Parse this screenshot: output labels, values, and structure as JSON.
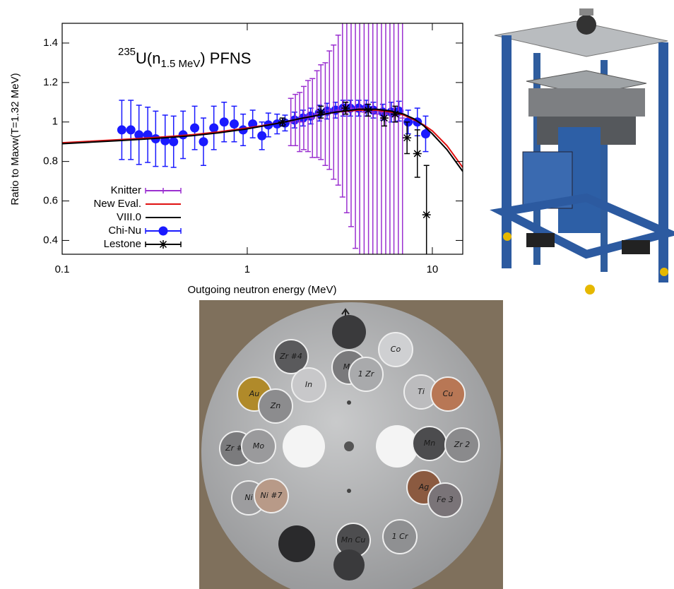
{
  "chart_data": {
    "type": "errorbar",
    "title_superscript": "235",
    "title_main": "U(n",
    "title_subscript": "1.5 MeV",
    "title_end": ") PFNS",
    "xlabel": "Outgoing neutron energy (MeV)",
    "ylabel": "Ratio to Maxw(T=1.32 MeV)",
    "xscale": "log",
    "xlim": [
      0.1,
      14.6
    ],
    "ylim": [
      0.33,
      1.5
    ],
    "xticks": [
      0.1,
      1,
      10
    ],
    "yticks": [
      0.4,
      0.6,
      0.8,
      1,
      1.2,
      1.4
    ],
    "legend": "lower left",
    "series": [
      {
        "name": "Knitter",
        "color": "#9b30d0",
        "style": "errorbar",
        "x": [
          1.72,
          1.82,
          1.92,
          2.02,
          2.13,
          2.25,
          2.38,
          2.5,
          2.64,
          2.78,
          2.93,
          3.1,
          3.27,
          3.45,
          3.64,
          3.84,
          4.05,
          4.28,
          4.52,
          4.77,
          5.03,
          5.31,
          5.6,
          5.9,
          6.2,
          6.55,
          6.9
        ],
        "values": [
          1.0,
          1.01,
          1.0,
          1.02,
          1.03,
          1.02,
          1.04,
          1.05,
          1.04,
          1.06,
          1.05,
          1.06,
          1.07,
          1.06,
          1.07,
          1.06,
          1.07,
          1.05,
          1.06,
          1.05,
          1.04,
          1.05,
          1.04,
          1.05,
          1.03,
          1.04,
          1.02
        ],
        "errors": [
          0.12,
          0.13,
          0.15,
          0.16,
          0.18,
          0.2,
          0.22,
          0.24,
          0.26,
          0.3,
          0.34,
          0.38,
          0.45,
          0.52,
          0.6,
          0.7,
          0.8,
          0.9,
          1.0,
          1.05,
          1.1,
          1.15,
          1.2,
          1.25,
          1.3,
          1.3,
          1.3
        ]
      },
      {
        "name": "New Eval.",
        "color": "#e01010",
        "style": "line",
        "x": [
          0.1,
          0.2,
          0.3,
          0.5,
          0.7,
          1,
          1.5,
          2,
          3,
          4,
          5,
          6,
          7,
          8,
          9,
          10,
          12,
          14.6
        ],
        "values": [
          0.895,
          0.91,
          0.92,
          0.935,
          0.95,
          0.97,
          0.995,
          1.02,
          1.05,
          1.06,
          1.06,
          1.05,
          1.035,
          1.01,
          0.985,
          0.955,
          0.88,
          0.77
        ]
      },
      {
        "name": "VIII.0",
        "color": "#000000",
        "style": "line",
        "x": [
          0.1,
          0.2,
          0.3,
          0.5,
          0.7,
          1,
          1.5,
          2,
          3,
          4,
          5,
          6,
          7,
          8,
          9,
          10,
          12,
          14.6
        ],
        "values": [
          0.89,
          0.905,
          0.915,
          0.93,
          0.945,
          0.965,
          0.995,
          1.02,
          1.05,
          1.065,
          1.065,
          1.055,
          1.04,
          1.015,
          0.98,
          0.94,
          0.86,
          0.75
        ]
      },
      {
        "name": "Chi-Nu",
        "color": "#1a1aff",
        "style": "errorbar-circle",
        "x": [
          0.21,
          0.235,
          0.26,
          0.29,
          0.32,
          0.36,
          0.4,
          0.45,
          0.52,
          0.58,
          0.66,
          0.75,
          0.85,
          0.95,
          1.07,
          1.2,
          1.3,
          1.45,
          1.6,
          1.8,
          2.0,
          2.2,
          2.45,
          2.7,
          3.0,
          3.3,
          3.6,
          4.0,
          4.4,
          4.8,
          5.4,
          6.0,
          6.6,
          7.4,
          8.3,
          9.2
        ],
        "values": [
          0.96,
          0.96,
          0.935,
          0.935,
          0.915,
          0.905,
          0.9,
          0.935,
          0.97,
          0.9,
          0.97,
          1.0,
          0.99,
          0.96,
          0.99,
          0.93,
          0.985,
          0.99,
          0.995,
          1.01,
          1.02,
          1.03,
          1.045,
          1.055,
          1.06,
          1.07,
          1.07,
          1.07,
          1.07,
          1.06,
          1.05,
          1.05,
          1.055,
          1.0,
          1.0,
          0.94
        ],
        "errors": [
          0.15,
          0.15,
          0.15,
          0.14,
          0.14,
          0.13,
          0.13,
          0.12,
          0.11,
          0.12,
          0.11,
          0.1,
          0.09,
          0.08,
          0.07,
          0.07,
          0.06,
          0.05,
          0.04,
          0.04,
          0.04,
          0.04,
          0.04,
          0.04,
          0.04,
          0.04,
          0.04,
          0.04,
          0.04,
          0.04,
          0.04,
          0.05,
          0.05,
          0.06,
          0.07,
          0.09
        ]
      },
      {
        "name": "Lestone",
        "color": "#000000",
        "style": "errorbar-star",
        "x": [
          1.55,
          2.5,
          3.4,
          4.5,
          5.5,
          6.3,
          7.3,
          8.3,
          9.3
        ],
        "values": [
          1.0,
          1.05,
          1.07,
          1.06,
          1.02,
          1.04,
          0.92,
          0.84,
          0.53
        ],
        "errors": [
          0.02,
          0.03,
          0.03,
          0.03,
          0.04,
          0.04,
          0.08,
          0.12,
          0.25
        ]
      }
    ]
  },
  "disc_labels": [
    "Zr #4",
    "In",
    "Mg",
    "Co",
    "1 Zr",
    "Au",
    "Zn",
    "Ti",
    "Cu",
    "Zr #3",
    "Mo",
    "Mn",
    "Zr 2",
    "Ni",
    "Ni #7",
    "Ag",
    "Fe 3",
    "Mn Cu",
    "1 Cr"
  ]
}
